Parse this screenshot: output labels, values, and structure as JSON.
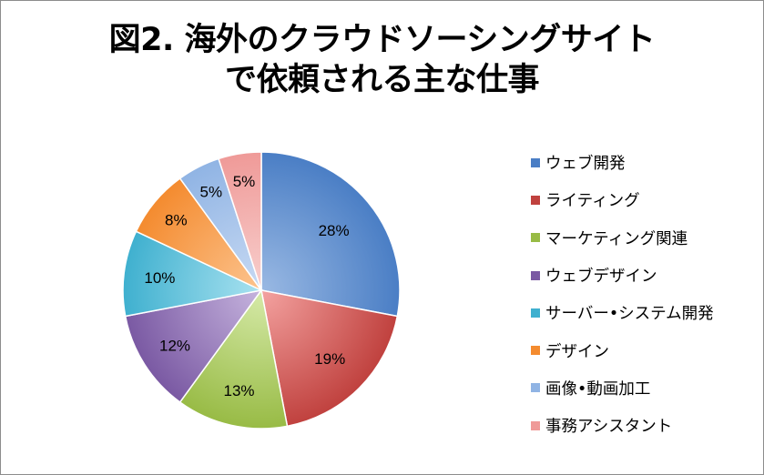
{
  "chart_data": {
    "type": "pie",
    "title_lines": [
      "図2. 海外のクラウドソーシングサイト",
      "で依頼される主な仕事"
    ],
    "legend_position": "right",
    "slices": [
      {
        "label": "ウェブ開発",
        "value": 28,
        "value_label": "28%",
        "color": "#4a7ec5",
        "color_light": "#9ab9e3"
      },
      {
        "label": "ライティング",
        "value": 19,
        "value_label": "19%",
        "color": "#c0413e",
        "color_light": "#f4a3a1"
      },
      {
        "label": "マーケティング関連",
        "value": 13,
        "value_label": "13%",
        "color": "#98bb45",
        "color_light": "#d6eaa9"
      },
      {
        "label": "ウェブデザイン",
        "value": 12,
        "value_label": "12%",
        "color": "#7a59a3",
        "color_light": "#c6b4de"
      },
      {
        "label": "サーバー•システム開発",
        "value": 10,
        "value_label": "10%",
        "color": "#3fb0cf",
        "color_light": "#a9e2f0"
      },
      {
        "label": "デザイン",
        "value": 8,
        "value_label": "8%",
        "color": "#f48b2f",
        "color_light": "#fcc48f"
      },
      {
        "label": "画像•動画加工",
        "value": 5,
        "value_label": "5%",
        "color": "#90b4e4",
        "color_light": "#c8daf3"
      },
      {
        "label": "事務アシスタント",
        "value": 5,
        "value_label": "5%",
        "color": "#ef9a98",
        "color_light": "#f8cfcd"
      }
    ]
  }
}
